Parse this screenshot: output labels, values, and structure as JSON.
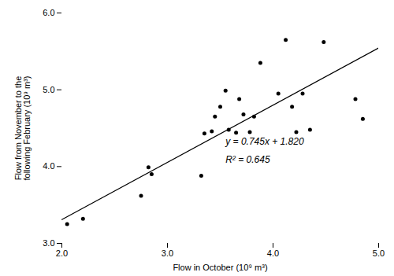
{
  "chart_data": {
    "type": "scatter",
    "xlabel": "Flow in October (10⁹ m³)",
    "ylabel": "Flow from November to the\nfollowing February (10⁹ m³)",
    "series": [
      {
        "type": "scatter",
        "marker": "circle",
        "color": "#000000",
        "x": [
          2.05,
          2.2,
          2.75,
          2.82,
          2.85,
          3.32,
          3.35,
          3.42,
          3.45,
          3.5,
          3.55,
          3.58,
          3.65,
          3.68,
          3.72,
          3.78,
          3.82,
          3.88,
          4.05,
          4.12,
          4.18,
          4.22,
          4.28,
          4.35,
          4.48,
          4.78,
          4.85
        ],
        "values": [
          3.25,
          3.32,
          3.62,
          3.99,
          3.9,
          3.88,
          4.43,
          4.46,
          4.65,
          4.78,
          4.99,
          4.48,
          4.44,
          4.88,
          4.68,
          4.45,
          4.65,
          5.35,
          4.95,
          5.65,
          4.78,
          4.45,
          4.95,
          4.48,
          5.62,
          4.88,
          4.62
        ]
      },
      {
        "type": "line",
        "line_style": "solid",
        "color": "#000000",
        "x": [
          2.0,
          5.0
        ],
        "values": [
          3.31,
          5.545
        ]
      }
    ],
    "annotations": [
      {
        "text": "y = 0.745x + 1.820",
        "x": 3.55,
        "y": 4.28
      },
      {
        "text": "R² = 0.645",
        "x": 3.55,
        "y": 4.05
      }
    ],
    "xlim": [
      2.0,
      5.0
    ],
    "ylim": [
      3.0,
      6.0
    ],
    "xticks": [
      2,
      3,
      4,
      5
    ],
    "yticks": [
      3,
      4,
      5,
      6
    ],
    "grid": false
  }
}
